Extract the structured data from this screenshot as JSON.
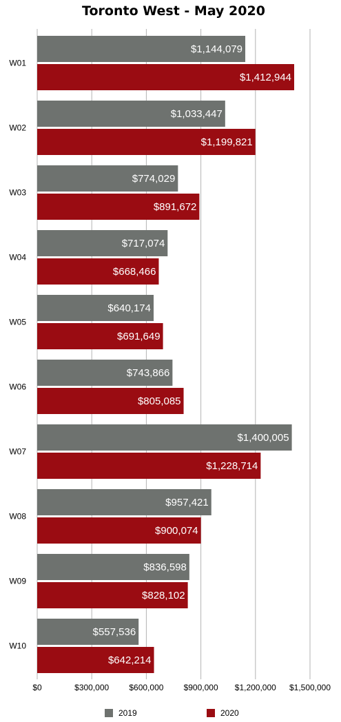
{
  "chart_data": {
    "type": "bar",
    "orientation": "horizontal",
    "title": "Toronto West - May 2020",
    "xlabel": "",
    "ylabel": "",
    "categories": [
      "W01",
      "W02",
      "W03",
      "W04",
      "W05",
      "W06",
      "W07",
      "W08",
      "W09",
      "W10"
    ],
    "series": [
      {
        "name": "2019",
        "color": "#6e726f",
        "values": [
          1144079,
          1033447,
          774029,
          717074,
          640174,
          743866,
          1400005,
          957421,
          836598,
          557536
        ],
        "labels": [
          "$1,144,079",
          "$1,033,447",
          "$774,029",
          "$717,074",
          "$640,174",
          "$743,866",
          "$1,400,005",
          "$957,421",
          "$836,598",
          "$557,536"
        ]
      },
      {
        "name": "2020",
        "color": "#9a0c12",
        "values": [
          1412944,
          1199821,
          891672,
          668466,
          691649,
          805085,
          1228714,
          900074,
          828102,
          642214
        ],
        "labels": [
          "$1,412,944",
          "$1,199,821",
          "$891,672",
          "$668,466",
          "$691,649",
          "$805,085",
          "$1,228,714",
          "$900,074",
          "$828,102",
          "$642,214"
        ]
      }
    ],
    "xlim": [
      0,
      1500000
    ],
    "xticks": [
      0,
      300000,
      600000,
      900000,
      1200000,
      1500000
    ],
    "xtick_labels": [
      "$0",
      "$300,000",
      "$600,000",
      "$900,000",
      "$1,200,000",
      "$1,500,000"
    ],
    "grid": true,
    "gridline_color": "#b3b3b3",
    "legend_position": "bottom"
  }
}
